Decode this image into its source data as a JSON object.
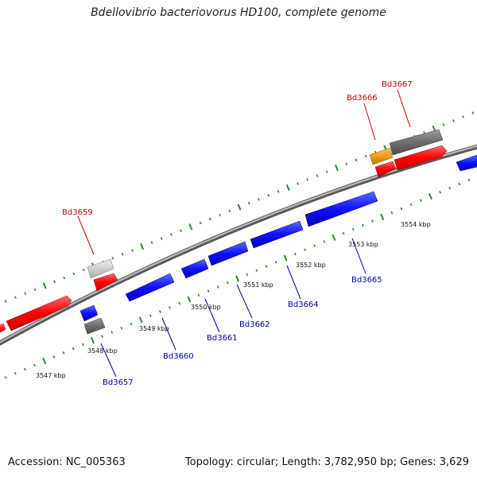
{
  "title": "Bdellovibrio bacteriovorus HD100, complete genome",
  "footer": {
    "accession": "Accession: NC_005363",
    "summary": "Topology: circular; Length: 3,782,950 bp; Genes: 3,629"
  },
  "colors": {
    "forward_gene": "#ff0000",
    "reverse_gene": "#0000ff",
    "forward_label": "#cc0000",
    "reverse_label": "#0000aa",
    "backbone": "#888888",
    "tick": "#2e8b2e",
    "gray_feature": "#6e6e6e",
    "light_gray_feature": "#c8c8c8",
    "orange_feature": "#f39c12"
  },
  "scale": {
    "unit": "kbp",
    "ticks": [
      {
        "label": "3547 kbp"
      },
      {
        "label": "3548 kbp"
      },
      {
        "label": "3549 kbp"
      },
      {
        "label": "3550 kbp"
      },
      {
        "label": "3551 kbp"
      },
      {
        "label": "3552 kbp"
      },
      {
        "label": "3553 kbp"
      },
      {
        "label": "3554 kbp"
      }
    ]
  },
  "gene_labels": {
    "forward": [
      "Bd3659",
      "Bd3666",
      "Bd3667"
    ],
    "reverse": [
      "Bd3657",
      "Bd3660",
      "Bd3661",
      "Bd3662",
      "Bd3664",
      "Bd3665"
    ]
  }
}
